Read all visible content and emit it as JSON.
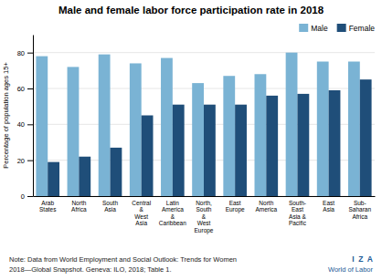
{
  "chart_data": {
    "type": "bar",
    "title": "Male and female labor force participation rate in 2018",
    "y_label": "Percentage of population ages 15+",
    "categories": [
      "Arab\nStates",
      "North\nAfrica",
      "South\nAsia",
      "Central\n&\nWest\nAsia",
      "Latin\nAmerica\n&\nCaribbean",
      "North,\nSouth\n&\nWest\nEurope",
      "East\nEurope",
      "North\nAmerica",
      "South-\nEast\nAsia &\nPacific",
      "East\nAsia",
      "Sub-\nSaharan\nAfrica"
    ],
    "series": [
      {
        "name": "Male",
        "color": "#7ab3d4",
        "values": [
          78,
          72,
          79,
          74,
          77,
          63,
          67,
          68,
          80,
          75,
          75
        ]
      },
      {
        "name": "Female",
        "color": "#1f4e79",
        "values": [
          19,
          22,
          27,
          45,
          51,
          51,
          51,
          56,
          57,
          59,
          65
        ]
      }
    ],
    "ylim": [
      0,
      90
    ],
    "yticks": [
      0,
      20,
      40,
      60,
      80
    ],
    "grid": true,
    "legend": "upper right",
    "annotations": [
      "Note: Data from World Employment and Social Outlook: Trends for Women",
      "2018—Global Snapshot. Geneva: ILO, 2018; Table 1.",
      "I  Z  A",
      "World of Labor"
    ]
  }
}
